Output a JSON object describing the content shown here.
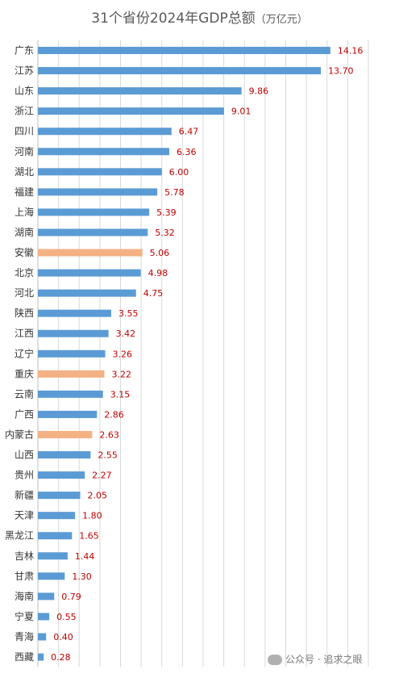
{
  "title": "31个省份2024年GDP总额",
  "unit": "（万亿元）",
  "watermark": "公众号 · 追求之眼",
  "colors": {
    "default": "#5b9bd5",
    "highlight": "#f4b183",
    "value_label": "#c00000",
    "grid": "#d9d9d9"
  },
  "chart_data": {
    "type": "bar",
    "orientation": "horizontal",
    "title": "31个省份2024年GDP总额",
    "unit": "（万亿元）",
    "xlim": [
      0,
      16
    ],
    "grid": true,
    "categories": [
      "广东",
      "江苏",
      "山东",
      "浙江",
      "四川",
      "河南",
      "湖北",
      "福建",
      "上海",
      "湖南",
      "安徽",
      "北京",
      "河北",
      "陕西",
      "江西",
      "辽宁",
      "重庆",
      "云南",
      "广西",
      "内蒙古",
      "山西",
      "贵州",
      "新疆",
      "天津",
      "黑龙江",
      "吉林",
      "甘肃",
      "海南",
      "宁夏",
      "青海",
      "西藏"
    ],
    "values": [
      14.16,
      13.7,
      9.86,
      9.01,
      6.47,
      6.36,
      6.0,
      5.78,
      5.39,
      5.32,
      5.06,
      4.98,
      4.75,
      3.55,
      3.42,
      3.26,
      3.22,
      3.15,
      2.86,
      2.63,
      2.55,
      2.27,
      2.05,
      1.8,
      1.65,
      1.44,
      1.3,
      0.79,
      0.55,
      0.4,
      0.28
    ],
    "labels": [
      "14.16",
      "13.70",
      "9.86",
      "9.01",
      "6.47",
      "6.36",
      "6.00",
      "5.78",
      "5.39",
      "5.32",
      "5.06",
      "4.98",
      "4.75",
      "3.55",
      "3.42",
      "3.26",
      "3.22",
      "3.15",
      "2.86",
      "2.63",
      "2.55",
      "2.27",
      "2.05",
      "1.80",
      "1.65",
      "1.44",
      "1.30",
      "0.79",
      "0.55",
      "0.40",
      "0.28"
    ],
    "highlighted": [
      "安徽",
      "重庆",
      "内蒙古"
    ]
  }
}
